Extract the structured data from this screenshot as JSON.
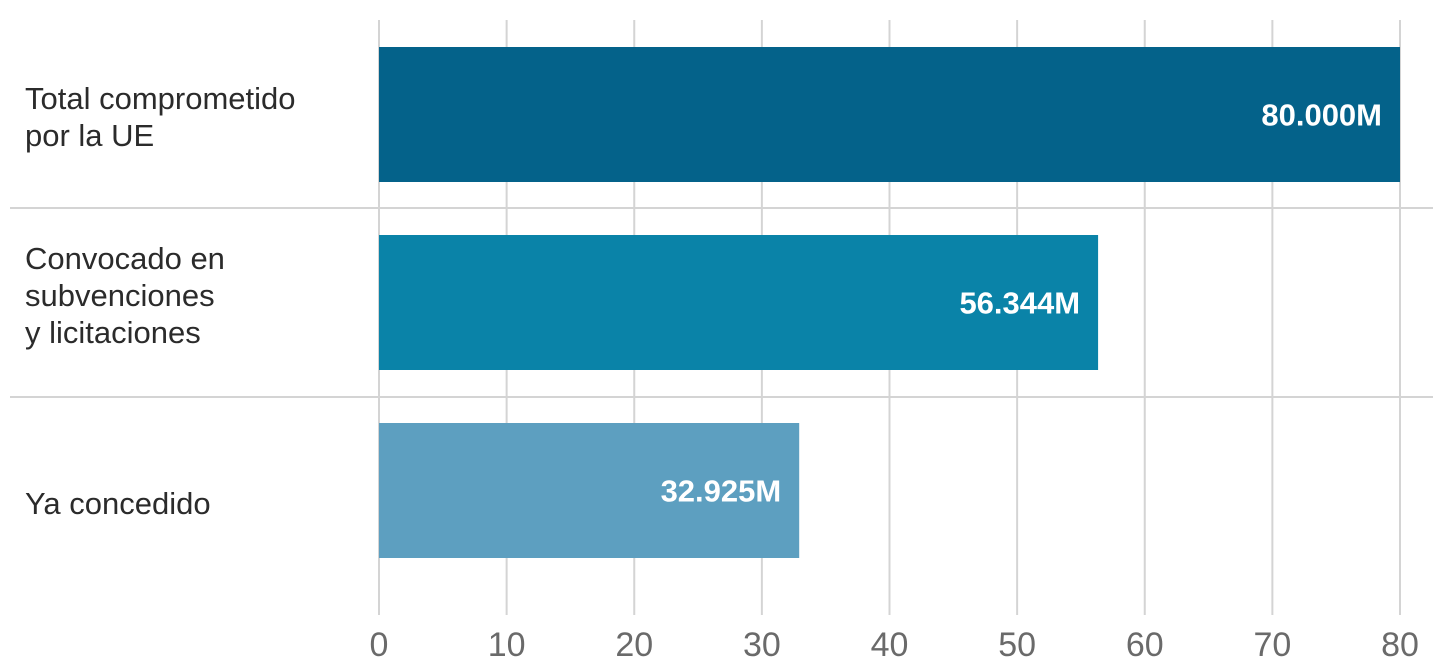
{
  "chart_data": {
    "type": "bar",
    "orientation": "horizontal",
    "categories": [
      "Total comprometido\npor la UE",
      "Convocado en\nsubvenciones\ny licitaciones",
      "Ya concedido"
    ],
    "values": [
      80,
      56.344,
      32.925
    ],
    "data_labels": [
      "80.000M",
      "56.344M",
      "32.925M"
    ],
    "xlim": [
      0,
      80
    ],
    "xticks": [
      0,
      10,
      20,
      30,
      40,
      50,
      60,
      70,
      80
    ],
    "xtick_labels": [
      "0",
      "10",
      "20",
      "30",
      "40",
      "50",
      "60",
      "70",
      "80"
    ],
    "grid": true,
    "legend": "none",
    "colors": [
      "#04628a",
      "#0a83a8",
      "#5d9fc0"
    ],
    "label_color": "#ffffff",
    "grid_color": "#d4d4d4"
  }
}
